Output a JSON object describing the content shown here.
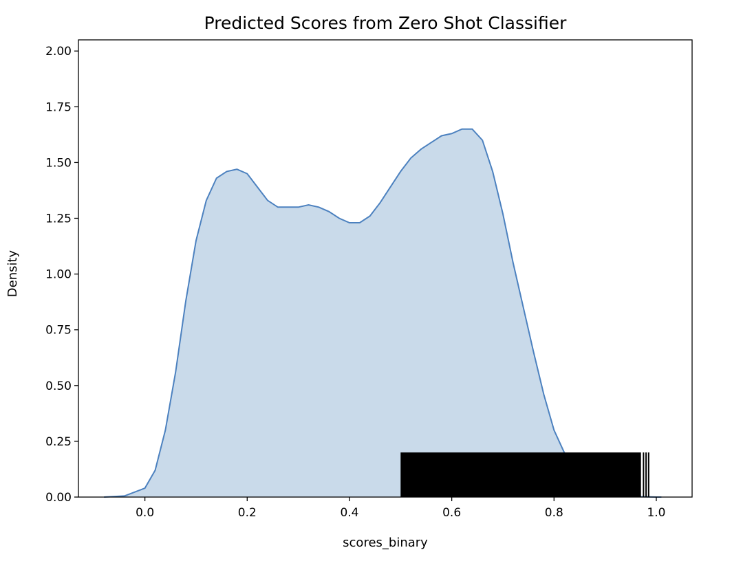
{
  "chart_data": {
    "type": "area",
    "title": "Predicted Scores from Zero Shot Classifier",
    "xlabel": "scores_binary",
    "ylabel": "Density",
    "xlim": [
      -0.13,
      1.07
    ],
    "ylim": [
      0,
      2.05
    ],
    "x_ticks": [
      "0.0",
      "0.2",
      "0.4",
      "0.6",
      "0.8",
      "1.0"
    ],
    "y_ticks": [
      "0.00",
      "0.25",
      "0.50",
      "0.75",
      "1.00",
      "1.25",
      "1.50",
      "1.75",
      "2.00"
    ],
    "grid": false,
    "legend": "none",
    "kde": {
      "x": [
        -0.08,
        -0.04,
        0.0,
        0.02,
        0.04,
        0.06,
        0.08,
        0.1,
        0.12,
        0.14,
        0.16,
        0.18,
        0.2,
        0.22,
        0.24,
        0.26,
        0.28,
        0.3,
        0.32,
        0.34,
        0.36,
        0.38,
        0.4,
        0.42,
        0.44,
        0.46,
        0.48,
        0.5,
        0.52,
        0.54,
        0.56,
        0.58,
        0.6,
        0.62,
        0.64,
        0.66,
        0.68,
        0.7,
        0.72,
        0.74,
        0.76,
        0.78,
        0.8,
        0.82,
        0.84,
        0.86,
        0.88,
        0.9,
        0.92,
        0.94,
        0.96,
        0.98,
        1.0,
        1.01
      ],
      "density": [
        0.0,
        0.005,
        0.04,
        0.12,
        0.3,
        0.56,
        0.88,
        1.15,
        1.33,
        1.43,
        1.46,
        1.47,
        1.45,
        1.39,
        1.33,
        1.3,
        1.3,
        1.3,
        1.31,
        1.3,
        1.28,
        1.25,
        1.23,
        1.23,
        1.26,
        1.32,
        1.39,
        1.46,
        1.52,
        1.56,
        1.59,
        1.62,
        1.63,
        1.65,
        1.65,
        1.6,
        1.46,
        1.27,
        1.05,
        0.85,
        0.65,
        0.46,
        0.3,
        0.2,
        0.12,
        0.065,
        0.035,
        0.018,
        0.009,
        0.004,
        0.002,
        0.001,
        0.0,
        0.0
      ],
      "line_color": "#4C81BF",
      "fill_color": "#C9DAEA"
    },
    "rug": {
      "color": "#000000",
      "height": 0.2,
      "x_range": [
        0.5,
        0.97
      ],
      "extra_ticks": [
        0.975,
        0.98,
        0.985
      ]
    }
  }
}
